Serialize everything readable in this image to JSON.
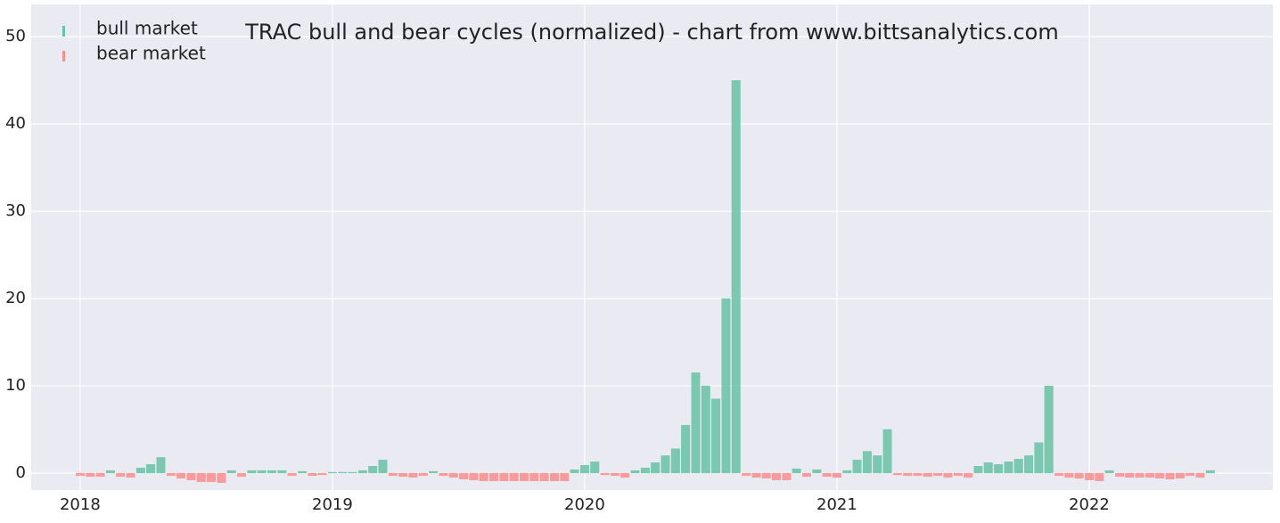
{
  "chart_data": {
    "type": "bar",
    "title": "TRAC bull and bear cycles (normalized)  - chart from www.bittsanalytics.com",
    "x": [
      2018,
      2018.04,
      2018.08,
      2018.12,
      2018.16,
      2018.2,
      2018.24,
      2018.28,
      2018.32,
      2018.36,
      2018.4,
      2018.44,
      2018.48,
      2018.52,
      2018.56,
      2018.6,
      2018.64,
      2018.68,
      2018.72,
      2018.76,
      2018.8,
      2018.84,
      2018.88,
      2018.92,
      2018.96,
      2019,
      2019.04,
      2019.08,
      2019.12,
      2019.16,
      2019.2,
      2019.24,
      2019.28,
      2019.32,
      2019.36,
      2019.4,
      2019.44,
      2019.48,
      2019.52,
      2019.56,
      2019.6,
      2019.64,
      2019.68,
      2019.72,
      2019.76,
      2019.8,
      2019.84,
      2019.88,
      2019.92,
      2019.96,
      2020,
      2020.04,
      2020.08,
      2020.12,
      2020.16,
      2020.2,
      2020.24,
      2020.28,
      2020.32,
      2020.36,
      2020.4,
      2020.44,
      2020.48,
      2020.52,
      2020.56,
      2020.6,
      2020.64,
      2020.68,
      2020.72,
      2020.76,
      2020.8,
      2020.84,
      2020.88,
      2020.92,
      2020.96,
      2021,
      2021.04,
      2021.08,
      2021.12,
      2021.16,
      2021.2,
      2021.24,
      2021.28,
      2021.32,
      2021.36,
      2021.4,
      2021.44,
      2021.48,
      2021.52,
      2021.56,
      2021.6,
      2021.64,
      2021.68,
      2021.72,
      2021.76,
      2021.8,
      2021.84,
      2021.88,
      2021.92,
      2021.96,
      2022,
      2022.04,
      2022.08,
      2022.12,
      2022.16,
      2022.2,
      2022.24,
      2022.28,
      2022.32,
      2022.36,
      2022.4,
      2022.44,
      2022.48
    ],
    "series": [
      {
        "name": "bull market",
        "color": "#66c2a5",
        "values": [
          null,
          null,
          null,
          0.3,
          null,
          null,
          0.6,
          1.0,
          1.8,
          null,
          null,
          null,
          null,
          null,
          null,
          0.3,
          null,
          0.3,
          0.3,
          0.3,
          0.3,
          null,
          0.2,
          null,
          null,
          0.1,
          0.1,
          0.1,
          0.3,
          0.8,
          1.5,
          null,
          null,
          null,
          null,
          0.2,
          null,
          null,
          null,
          null,
          null,
          null,
          null,
          null,
          null,
          null,
          null,
          null,
          null,
          0.4,
          0.9,
          1.3,
          null,
          null,
          null,
          0.3,
          0.6,
          1.2,
          2.0,
          2.8,
          5.5,
          11.5,
          10,
          8.5,
          20,
          45,
          null,
          null,
          null,
          null,
          null,
          0.5,
          null,
          0.4,
          null,
          null,
          0.3,
          1.5,
          2.5,
          2.0,
          5.0,
          null,
          null,
          null,
          null,
          null,
          null,
          null,
          null,
          0.8,
          1.2,
          1.0,
          1.3,
          1.6,
          2.0,
          3.5,
          10,
          null,
          null,
          null,
          null,
          null,
          0.3,
          null,
          null,
          null,
          null,
          null,
          null,
          null,
          null,
          null,
          0.3
        ]
      },
      {
        "name": "bear market",
        "color": "#fc8d8d",
        "values": [
          -0.3,
          -0.4,
          -0.4,
          null,
          -0.4,
          -0.5,
          null,
          null,
          null,
          -0.3,
          -0.6,
          -0.8,
          -1.0,
          -1.0,
          -1.1,
          null,
          -0.4,
          null,
          null,
          null,
          null,
          -0.3,
          null,
          -0.3,
          -0.2,
          null,
          null,
          null,
          null,
          null,
          null,
          -0.3,
          -0.4,
          -0.5,
          -0.3,
          null,
          -0.3,
          -0.5,
          -0.7,
          -0.8,
          -0.9,
          -0.9,
          -0.9,
          -0.9,
          -0.9,
          -0.9,
          -0.9,
          -0.9,
          -0.9,
          null,
          null,
          null,
          -0.2,
          -0.3,
          -0.5,
          null,
          null,
          null,
          null,
          null,
          null,
          null,
          null,
          null,
          null,
          null,
          -0.3,
          -0.5,
          -0.6,
          -0.8,
          -0.8,
          null,
          -0.4,
          null,
          -0.4,
          -0.5,
          null,
          null,
          null,
          null,
          null,
          -0.2,
          -0.3,
          -0.3,
          -0.4,
          -0.3,
          -0.5,
          -0.3,
          -0.5,
          null,
          null,
          null,
          null,
          null,
          null,
          null,
          null,
          -0.3,
          -0.5,
          -0.6,
          -0.8,
          -0.9,
          null,
          -0.4,
          -0.5,
          -0.5,
          -0.5,
          -0.6,
          -0.7,
          -0.6,
          -0.3,
          -0.5,
          null
        ]
      }
    ],
    "xlim": [
      2017.806,
      2022.728
    ],
    "xticks": [
      2018,
      2019,
      2020,
      2021,
      2022
    ],
    "ylim": [
      -1.94,
      53.7
    ],
    "yticks": [
      0,
      10,
      20,
      30,
      40,
      50
    ],
    "grid": true,
    "legend": "upper left"
  }
}
